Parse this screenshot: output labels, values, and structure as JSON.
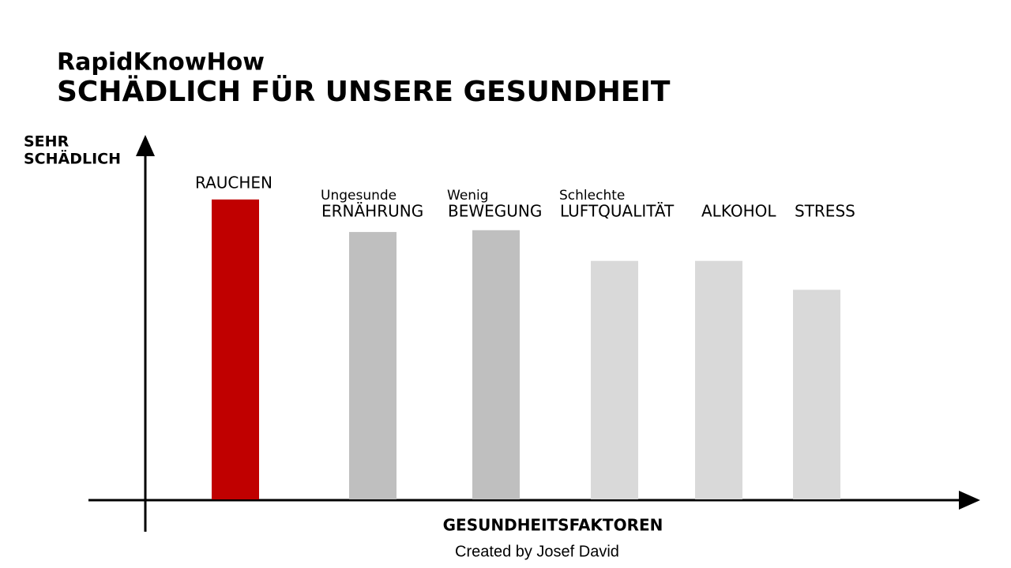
{
  "chart_data": {
    "type": "bar",
    "brand": "RapidKnowHow",
    "title": "SCHÄDLICH FÜR UNSERE GESUNDHEIT",
    "ylabel": [
      "SEHR",
      "SCHÄDLICH"
    ],
    "xlabel": "GESUNDHEITSFAKTOREN",
    "footer": "Created by Josef David",
    "categories": [
      "RAUCHEN",
      "ERNÄHRUNG",
      "BEWEGUNG",
      "LUFTQUALITÄT",
      "ALKOHOL",
      "STRESS"
    ],
    "category_prefixes": [
      null,
      "Ungesunde",
      "Wenig",
      "Schlechte",
      null,
      null
    ],
    "values": [
      83,
      74,
      74.5,
      66,
      66,
      58
    ],
    "colors": [
      "#c00000",
      "#bfbfbf",
      "#bfbfbf",
      "#d9d9d9",
      "#d9d9d9",
      "#d9d9d9"
    ],
    "ylim": [
      0,
      100
    ]
  }
}
